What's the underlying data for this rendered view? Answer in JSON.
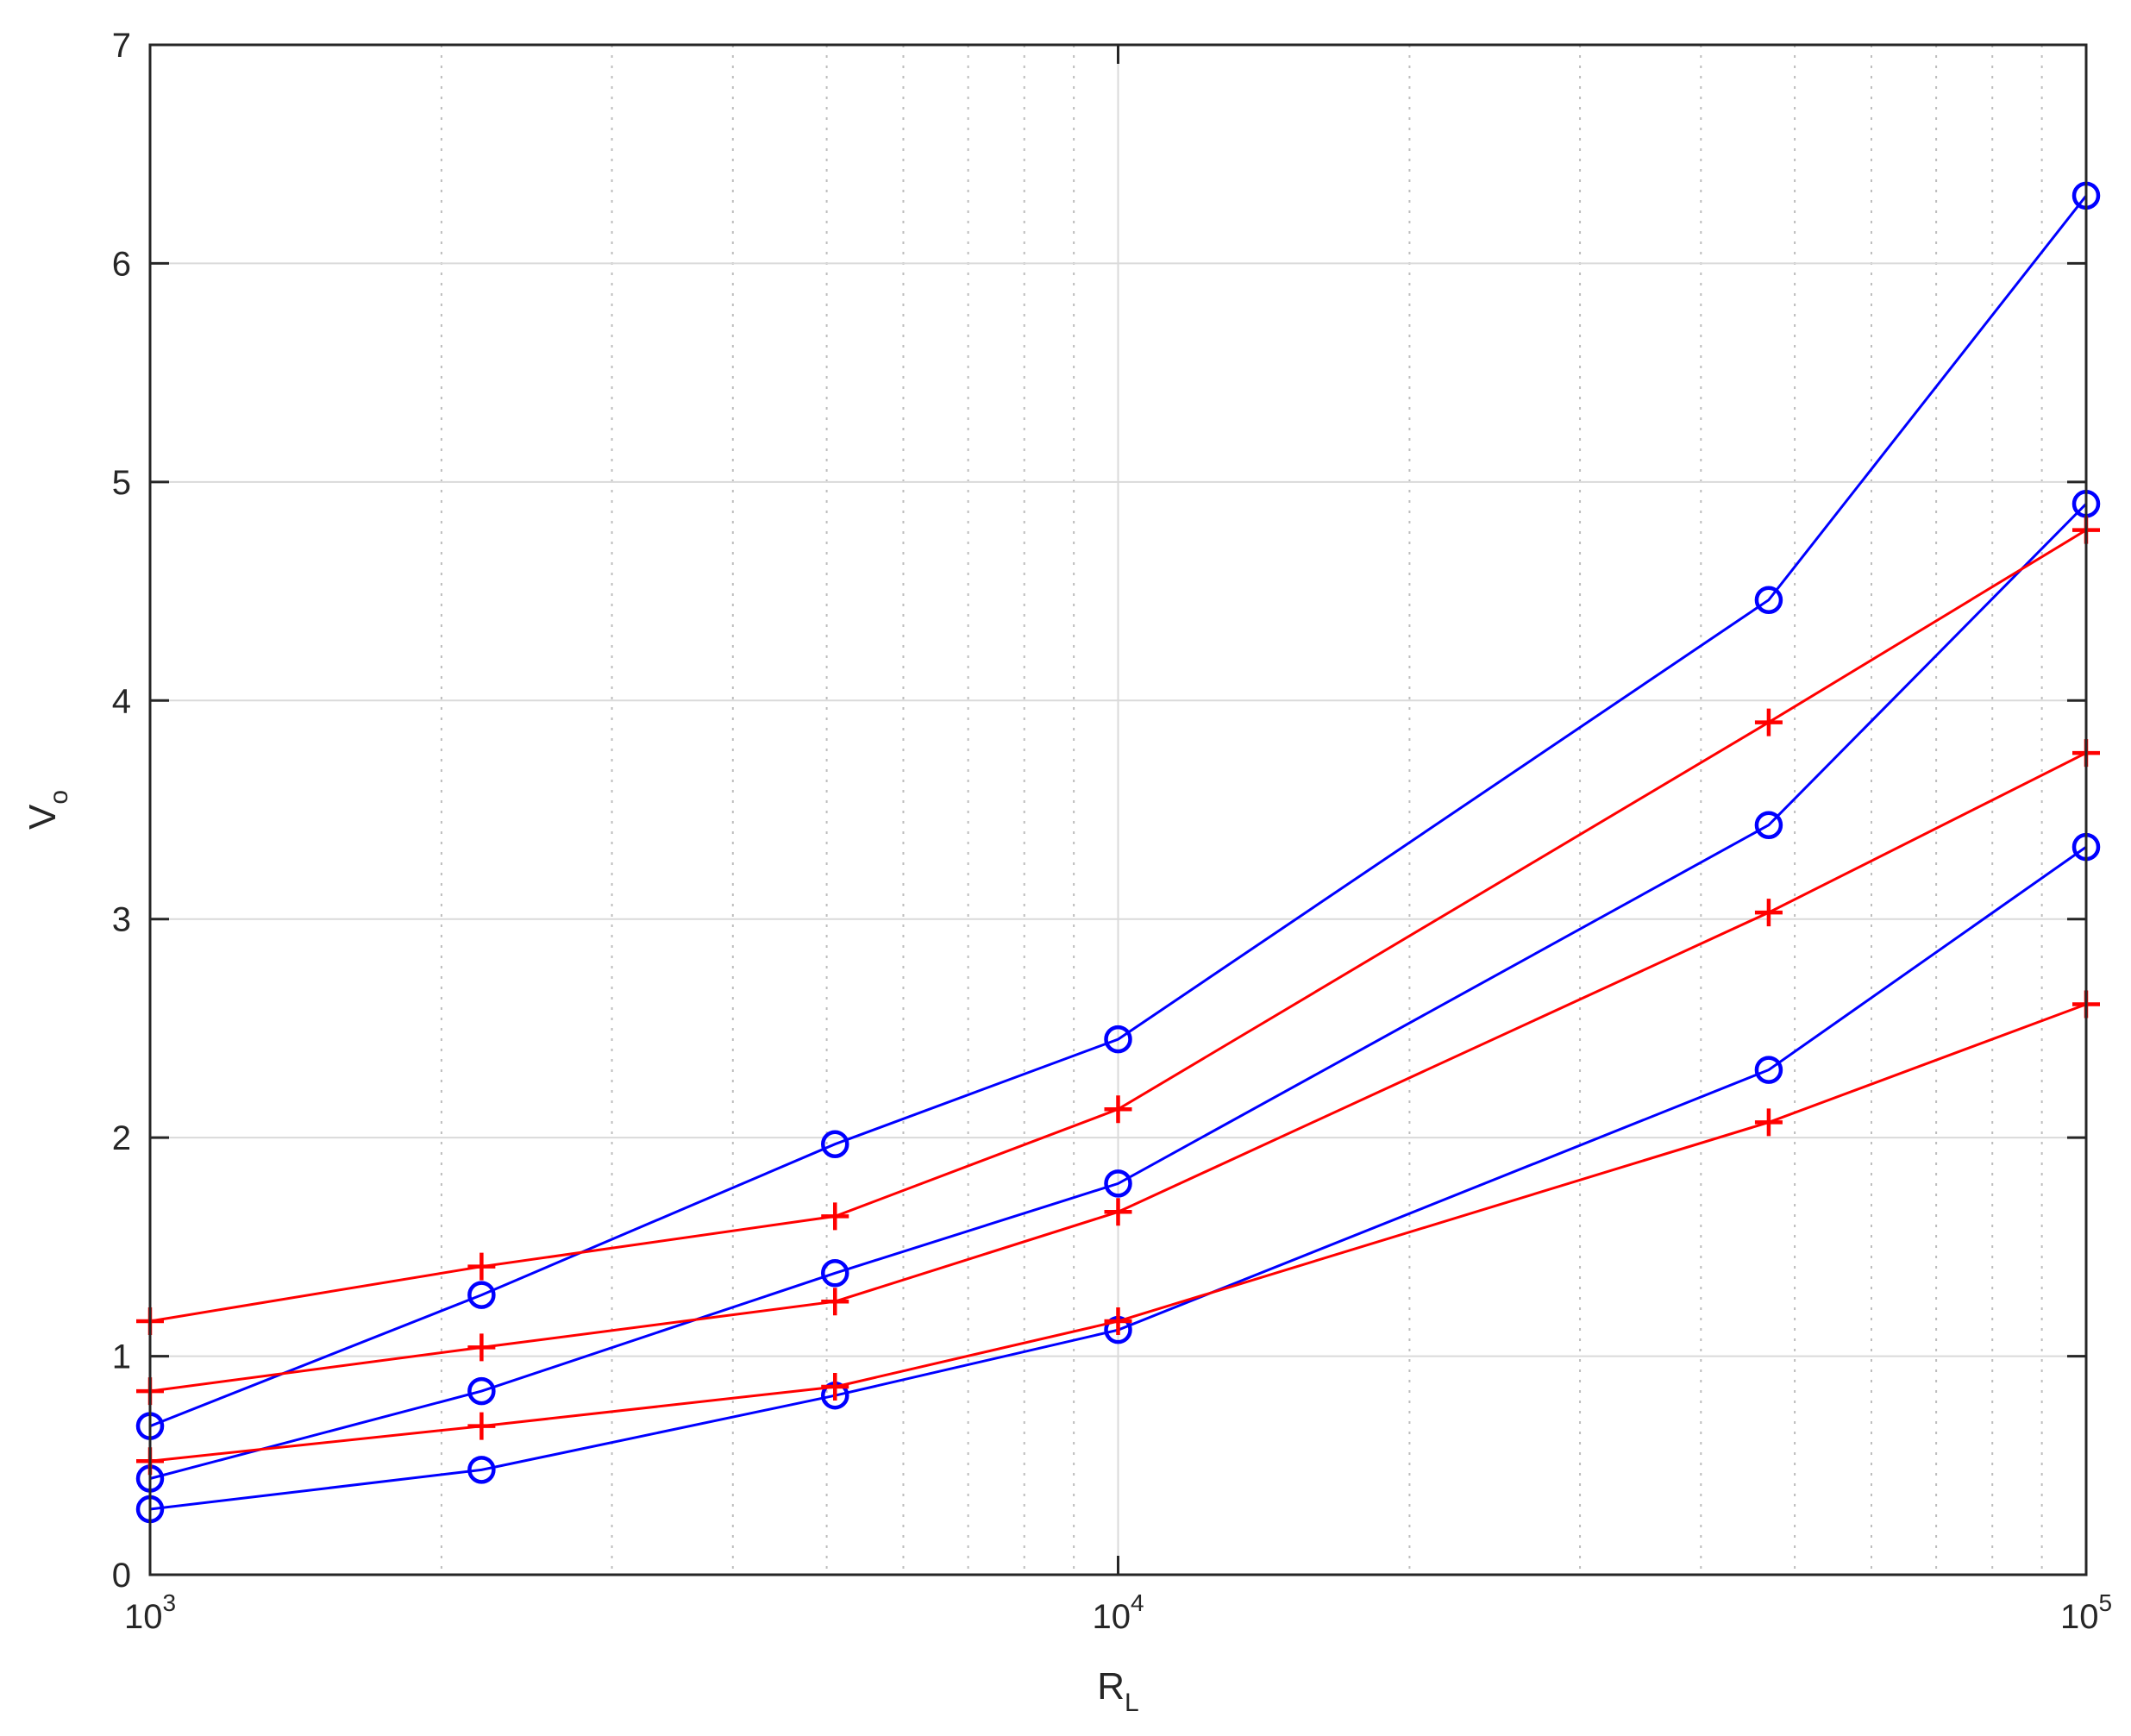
{
  "chart_data": {
    "type": "line",
    "xscale": "log",
    "xlim": [
      1000,
      100000
    ],
    "ylim": [
      0,
      7
    ],
    "grid": true,
    "xlabel": {
      "main": "R",
      "sub": "L"
    },
    "ylabel": {
      "main": "V",
      "sub": "o"
    },
    "x_ticks": [
      {
        "value": 1000,
        "base": "10",
        "exp": "3"
      },
      {
        "value": 10000,
        "base": "10",
        "exp": "4"
      },
      {
        "value": 100000,
        "base": "10",
        "exp": "5"
      }
    ],
    "y_ticks": [
      {
        "value": 0,
        "label": "0"
      },
      {
        "value": 1,
        "label": "1"
      },
      {
        "value": 2,
        "label": "2"
      },
      {
        "value": 3,
        "label": "3"
      },
      {
        "value": 4,
        "label": "4"
      },
      {
        "value": 5,
        "label": "5"
      },
      {
        "value": 6,
        "label": "6"
      },
      {
        "value": 7,
        "label": "7"
      }
    ],
    "x": [
      1000,
      2200,
      5100,
      10000,
      47000,
      100000
    ],
    "series": [
      {
        "color": "#0000ff",
        "marker": "circle",
        "values": [
          0.68,
          1.28,
          1.97,
          2.45,
          4.46,
          6.31
        ]
      },
      {
        "color": "#0000ff",
        "marker": "circle",
        "values": [
          0.44,
          0.84,
          1.38,
          1.79,
          3.43,
          4.9
        ]
      },
      {
        "color": "#0000ff",
        "marker": "circle",
        "values": [
          0.3,
          0.48,
          0.82,
          1.12,
          2.31,
          3.33
        ]
      },
      {
        "color": "#ff0000",
        "marker": "plus",
        "values": [
          1.16,
          1.41,
          1.64,
          2.13,
          3.9,
          4.78
        ]
      },
      {
        "color": "#ff0000",
        "marker": "plus",
        "values": [
          0.84,
          1.04,
          1.25,
          1.66,
          3.03,
          3.76
        ]
      },
      {
        "color": "#ff0000",
        "marker": "plus",
        "values": [
          0.52,
          0.68,
          0.86,
          1.16,
          2.07,
          2.61
        ]
      }
    ]
  }
}
